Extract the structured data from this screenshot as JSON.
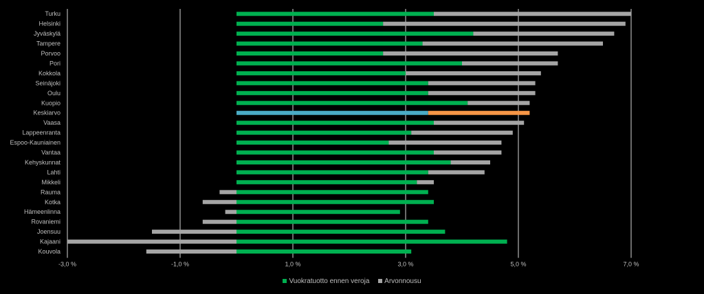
{
  "chart_data": {
    "type": "bar",
    "orientation": "horizontal",
    "stacked": true,
    "categories": [
      "Turku",
      "Helsinki",
      "Jyväskylä",
      "Tampere",
      "Porvoo",
      "Pori",
      "Kokkola",
      "Seinäjoki",
      "Oulu",
      "Kuopio",
      "Keskiarvo",
      "Vaasa",
      "Lappeenranta",
      "Espoo-Kauniainen",
      "Vantaa",
      "Kehyskunnat",
      "Lahti",
      "Mikkeli",
      "Rauma",
      "Kotka",
      "Hämeenlinna",
      "Rovaniemi",
      "Joensuu",
      "Kajaani",
      "Kouvola"
    ],
    "series": [
      {
        "name": "Vuokratuotto ennen veroja",
        "color": "#00b050",
        "values": [
          3.5,
          2.6,
          4.2,
          3.3,
          2.6,
          4.0,
          3.0,
          3.4,
          3.4,
          4.1,
          3.4,
          3.5,
          3.1,
          2.7,
          3.5,
          3.8,
          3.4,
          3.2,
          3.4,
          3.5,
          2.9,
          3.4,
          3.7,
          4.8,
          3.1
        ]
      },
      {
        "name": "Arvonnousu",
        "color": "#a5a5a5",
        "values": [
          3.5,
          4.3,
          2.5,
          3.2,
          3.1,
          1.7,
          2.4,
          1.9,
          1.9,
          1.1,
          1.8,
          1.6,
          1.8,
          2.0,
          1.2,
          0.7,
          1.0,
          0.3,
          -0.3,
          -0.6,
          -0.2,
          -0.6,
          -1.5,
          -3.0,
          -1.6
        ]
      }
    ],
    "highlight": {
      "category": "Keskiarvo",
      "colors": [
        "#4bacc6",
        "#f79646"
      ]
    },
    "xlim": [
      -3.0,
      7.0
    ],
    "x_ticks": [
      -3.0,
      -1.0,
      1.0,
      3.0,
      5.0,
      7.0
    ],
    "x_tick_labels": [
      "-3,0 %",
      "-1,0 %",
      "1,0 %",
      "3,0 %",
      "5,0 %",
      "7,0 %"
    ],
    "grid": true,
    "legend_position": "bottom"
  },
  "legend": [
    {
      "label": "Vuokratuotto ennen veroja",
      "color": "#00b050"
    },
    {
      "label": "Arvonnousu",
      "color": "#a5a5a5"
    }
  ]
}
